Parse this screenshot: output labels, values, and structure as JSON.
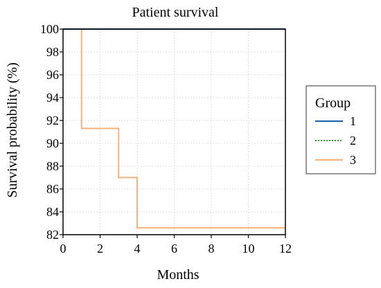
{
  "chart_data": {
    "type": "line",
    "step": true,
    "title": "Patient survival",
    "xlabel": "Months",
    "ylabel": "Survival probability (%)",
    "xlim": [
      0,
      12
    ],
    "ylim": [
      82,
      100
    ],
    "xticks": [
      0,
      2,
      4,
      6,
      8,
      10,
      12
    ],
    "yticks": [
      82,
      84,
      86,
      88,
      90,
      92,
      94,
      96,
      98,
      100
    ],
    "grid": true,
    "legend": {
      "title": "Group",
      "placement": "right"
    },
    "series": [
      {
        "name": "1",
        "color": "#1f5fa8",
        "dash": "solid",
        "x": [
          0,
          12
        ],
        "y": [
          100,
          100
        ]
      },
      {
        "name": "2",
        "color": "#2ca02c",
        "dash": "dotted",
        "x": [
          0,
          12
        ],
        "y": [
          100,
          100
        ]
      },
      {
        "name": "3",
        "color": "#f5b27a",
        "dash": "solid",
        "x": [
          0,
          1,
          1,
          3,
          3,
          4,
          4,
          12
        ],
        "y": [
          100,
          100,
          91.3,
          91.3,
          87,
          87,
          82.6,
          82.6
        ]
      }
    ]
  }
}
